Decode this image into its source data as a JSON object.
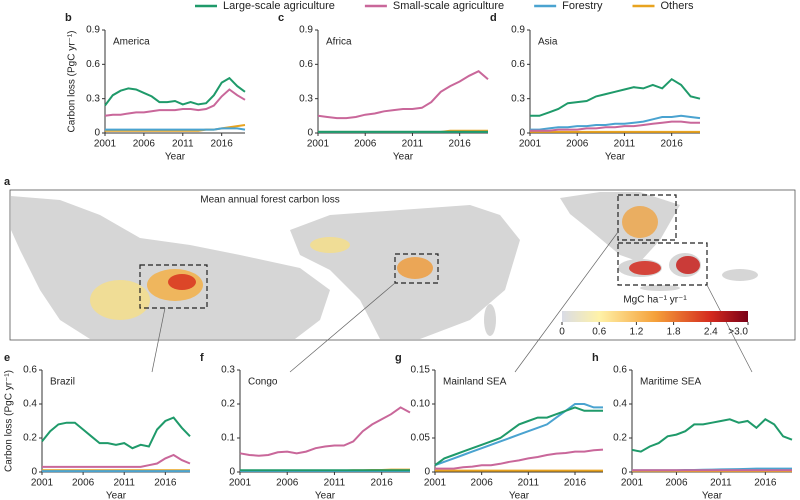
{
  "chart_data": [
    {
      "type": "line",
      "panel_label": "b",
      "title": "America",
      "ylabel": "Carbon loss (PgC yr⁻¹)",
      "xlabel": "Year",
      "x": [
        2001,
        2002,
        2003,
        2004,
        2005,
        2006,
        2007,
        2008,
        2009,
        2010,
        2011,
        2012,
        2013,
        2014,
        2015,
        2016,
        2017,
        2018,
        2019
      ],
      "xlim": [
        2001,
        2019
      ],
      "xticks": [
        2001,
        2006,
        2011,
        2016
      ],
      "ylim": [
        0,
        0.9
      ],
      "yticks": [
        0,
        0.3,
        0.6,
        0.9
      ],
      "series": [
        {
          "name": "Large-scale agriculture",
          "color": "#1f9a6a",
          "values": [
            0.24,
            0.33,
            0.37,
            0.39,
            0.38,
            0.35,
            0.32,
            0.27,
            0.27,
            0.28,
            0.25,
            0.27,
            0.25,
            0.26,
            0.33,
            0.44,
            0.48,
            0.41,
            0.36
          ]
        },
        {
          "name": "Small-scale agriculture",
          "color": "#c9679a",
          "values": [
            0.15,
            0.16,
            0.16,
            0.17,
            0.18,
            0.18,
            0.19,
            0.2,
            0.2,
            0.2,
            0.21,
            0.21,
            0.2,
            0.21,
            0.24,
            0.32,
            0.38,
            0.33,
            0.29
          ]
        },
        {
          "name": "Forestry",
          "color": "#4aa3d0",
          "values": [
            0.03,
            0.03,
            0.03,
            0.03,
            0.03,
            0.03,
            0.03,
            0.03,
            0.03,
            0.03,
            0.03,
            0.03,
            0.03,
            0.03,
            0.03,
            0.04,
            0.04,
            0.04,
            0.03
          ]
        },
        {
          "name": "Others",
          "color": "#e8a31f",
          "values": [
            0.02,
            0.02,
            0.02,
            0.02,
            0.02,
            0.02,
            0.02,
            0.02,
            0.02,
            0.02,
            0.02,
            0.02,
            0.02,
            0.03,
            0.03,
            0.04,
            0.05,
            0.06,
            0.07
          ]
        }
      ]
    },
    {
      "type": "line",
      "panel_label": "c",
      "title": "Africa",
      "xlabel": "Year",
      "x": [
        2001,
        2002,
        2003,
        2004,
        2005,
        2006,
        2007,
        2008,
        2009,
        2010,
        2011,
        2012,
        2013,
        2014,
        2015,
        2016,
        2017,
        2018,
        2019
      ],
      "xlim": [
        2001,
        2019
      ],
      "xticks": [
        2001,
        2006,
        2011,
        2016
      ],
      "ylim": [
        0,
        0.9
      ],
      "yticks": [
        0,
        0.3,
        0.6,
        0.9
      ],
      "series": [
        {
          "name": "Large-scale agriculture",
          "color": "#1f9a6a",
          "values": [
            0.01,
            0.01,
            0.01,
            0.01,
            0.01,
            0.01,
            0.01,
            0.01,
            0.01,
            0.01,
            0.01,
            0.01,
            0.01,
            0.01,
            0.01,
            0.01,
            0.01,
            0.01,
            0.01
          ]
        },
        {
          "name": "Small-scale agriculture",
          "color": "#c9679a",
          "values": [
            0.15,
            0.14,
            0.13,
            0.13,
            0.14,
            0.16,
            0.17,
            0.19,
            0.2,
            0.21,
            0.21,
            0.22,
            0.27,
            0.36,
            0.41,
            0.45,
            0.5,
            0.54,
            0.47
          ]
        },
        {
          "name": "Forestry",
          "color": "#4aa3d0",
          "values": [
            0.01,
            0.01,
            0.01,
            0.01,
            0.01,
            0.01,
            0.01,
            0.01,
            0.01,
            0.01,
            0.01,
            0.01,
            0.01,
            0.01,
            0.01,
            0.01,
            0.01,
            0.01,
            0.01
          ]
        },
        {
          "name": "Others",
          "color": "#e8a31f",
          "values": [
            0.01,
            0.01,
            0.01,
            0.01,
            0.01,
            0.01,
            0.01,
            0.01,
            0.01,
            0.01,
            0.01,
            0.01,
            0.01,
            0.01,
            0.02,
            0.02,
            0.02,
            0.02,
            0.02
          ]
        }
      ]
    },
    {
      "type": "line",
      "panel_label": "d",
      "title": "Asia",
      "xlabel": "Year",
      "x": [
        2001,
        2002,
        2003,
        2004,
        2005,
        2006,
        2007,
        2008,
        2009,
        2010,
        2011,
        2012,
        2013,
        2014,
        2015,
        2016,
        2017,
        2018,
        2019
      ],
      "xlim": [
        2001,
        2019
      ],
      "xticks": [
        2001,
        2006,
        2011,
        2016
      ],
      "ylim": [
        0,
        0.9
      ],
      "yticks": [
        0,
        0.3,
        0.6,
        0.9
      ],
      "series": [
        {
          "name": "Large-scale agriculture",
          "color": "#1f9a6a",
          "values": [
            0.15,
            0.15,
            0.18,
            0.21,
            0.26,
            0.27,
            0.28,
            0.32,
            0.34,
            0.36,
            0.38,
            0.4,
            0.39,
            0.42,
            0.39,
            0.47,
            0.42,
            0.32,
            0.3
          ]
        },
        {
          "name": "Small-scale agriculture",
          "color": "#c9679a",
          "values": [
            0.02,
            0.02,
            0.02,
            0.03,
            0.03,
            0.03,
            0.04,
            0.04,
            0.05,
            0.05,
            0.06,
            0.06,
            0.07,
            0.08,
            0.09,
            0.1,
            0.1,
            0.09,
            0.09
          ]
        },
        {
          "name": "Forestry",
          "color": "#4aa3d0",
          "values": [
            0.03,
            0.03,
            0.04,
            0.05,
            0.05,
            0.06,
            0.06,
            0.07,
            0.07,
            0.08,
            0.08,
            0.09,
            0.1,
            0.12,
            0.14,
            0.14,
            0.15,
            0.14,
            0.13
          ]
        },
        {
          "name": "Others",
          "color": "#e8a31f",
          "values": [
            0.01,
            0.01,
            0.01,
            0.01,
            0.01,
            0.01,
            0.01,
            0.01,
            0.01,
            0.01,
            0.01,
            0.01,
            0.01,
            0.01,
            0.01,
            0.01,
            0.01,
            0.01,
            0.01
          ]
        }
      ]
    },
    {
      "type": "map",
      "panel_label": "a",
      "title": "Mean annual forest carbon loss",
      "colorbar": {
        "label": "MgC ha⁻¹ yr⁻¹",
        "lim": [
          0,
          3
        ],
        "ticks": [
          0,
          0.6,
          1.2,
          1.8,
          2.4,
          {
            "value": 3,
            "label": ">3.0"
          }
        ]
      }
    },
    {
      "type": "line",
      "panel_label": "e",
      "title": "Brazil",
      "ylabel": "Carbon loss (PgC yr⁻¹)",
      "xlabel": "Year",
      "x": [
        2001,
        2002,
        2003,
        2004,
        2005,
        2006,
        2007,
        2008,
        2009,
        2010,
        2011,
        2012,
        2013,
        2014,
        2015,
        2016,
        2017,
        2018,
        2019
      ],
      "xlim": [
        2001,
        2019
      ],
      "xticks": [
        2001,
        2006,
        2011,
        2016
      ],
      "ylim": [
        0,
        0.6
      ],
      "yticks": [
        0,
        0.2,
        0.4,
        0.6
      ],
      "series": [
        {
          "name": "Large-scale agriculture",
          "color": "#1f9a6a",
          "values": [
            0.18,
            0.24,
            0.28,
            0.29,
            0.29,
            0.25,
            0.21,
            0.17,
            0.17,
            0.16,
            0.17,
            0.14,
            0.16,
            0.15,
            0.25,
            0.3,
            0.32,
            0.26,
            0.21
          ]
        },
        {
          "name": "Small-scale agriculture",
          "color": "#c9679a",
          "values": [
            0.03,
            0.03,
            0.03,
            0.03,
            0.03,
            0.03,
            0.03,
            0.03,
            0.03,
            0.03,
            0.03,
            0.03,
            0.03,
            0.04,
            0.05,
            0.08,
            0.1,
            0.07,
            0.05
          ]
        },
        {
          "name": "Forestry",
          "color": "#4aa3d0",
          "values": [
            0.005,
            0.005,
            0.005,
            0.005,
            0.005,
            0.005,
            0.005,
            0.005,
            0.005,
            0.005,
            0.005,
            0.005,
            0.005,
            0.005,
            0.005,
            0.005,
            0.005,
            0.005,
            0.005
          ]
        },
        {
          "name": "Others",
          "color": "#e8a31f",
          "values": [
            0.01,
            0.01,
            0.01,
            0.01,
            0.01,
            0.01,
            0.01,
            0.01,
            0.01,
            0.01,
            0.01,
            0.01,
            0.01,
            0.01,
            0.01,
            0.01,
            0.01,
            0.01,
            0.01
          ]
        }
      ]
    },
    {
      "type": "line",
      "panel_label": "f",
      "title": "Congo",
      "xlabel": "Year",
      "x": [
        2001,
        2002,
        2003,
        2004,
        2005,
        2006,
        2007,
        2008,
        2009,
        2010,
        2011,
        2012,
        2013,
        2014,
        2015,
        2016,
        2017,
        2018,
        2019
      ],
      "xlim": [
        2001,
        2019
      ],
      "xticks": [
        2001,
        2006,
        2011,
        2016
      ],
      "ylim": [
        0,
        0.3
      ],
      "yticks": [
        0,
        0.1,
        0.2,
        0.3
      ],
      "series": [
        {
          "name": "Large-scale agriculture",
          "color": "#1f9a6a",
          "values": [
            0.005,
            0.005,
            0.005,
            0.005,
            0.005,
            0.005,
            0.005,
            0.005,
            0.005,
            0.005,
            0.005,
            0.005,
            0.005,
            0.005,
            0.005,
            0.005,
            0.005,
            0.005,
            0.005
          ]
        },
        {
          "name": "Small-scale agriculture",
          "color": "#c9679a",
          "values": [
            0.055,
            0.05,
            0.048,
            0.05,
            0.058,
            0.06,
            0.055,
            0.06,
            0.07,
            0.075,
            0.078,
            0.078,
            0.09,
            0.12,
            0.14,
            0.155,
            0.17,
            0.19,
            0.175
          ]
        },
        {
          "name": "Forestry",
          "color": "#4aa3d0",
          "values": [
            0.003,
            0.003,
            0.003,
            0.003,
            0.003,
            0.003,
            0.003,
            0.003,
            0.003,
            0.003,
            0.003,
            0.003,
            0.003,
            0.003,
            0.003,
            0.003,
            0.003,
            0.003,
            0.003
          ]
        },
        {
          "name": "Others",
          "color": "#e8a31f",
          "values": [
            0.003,
            0.003,
            0.003,
            0.003,
            0.003,
            0.003,
            0.003,
            0.003,
            0.003,
            0.004,
            0.004,
            0.004,
            0.005,
            0.005,
            0.006,
            0.006,
            0.007,
            0.007,
            0.007
          ]
        }
      ]
    },
    {
      "type": "line",
      "panel_label": "g",
      "title": "Mainland SEA",
      "xlabel": "Year",
      "x": [
        2001,
        2002,
        2003,
        2004,
        2005,
        2006,
        2007,
        2008,
        2009,
        2010,
        2011,
        2012,
        2013,
        2014,
        2015,
        2016,
        2017,
        2018,
        2019
      ],
      "xlim": [
        2001,
        2019
      ],
      "xticks": [
        2001,
        2006,
        2011,
        2016
      ],
      "ylim": [
        0,
        0.15
      ],
      "yticks": [
        0,
        0.05,
        {
          "value": 0.1,
          "label": "0.10"
        },
        0.15
      ],
      "series": [
        {
          "name": "Large-scale agriculture",
          "color": "#1f9a6a",
          "values": [
            0.01,
            0.02,
            0.025,
            0.03,
            0.035,
            0.04,
            0.045,
            0.05,
            0.06,
            0.07,
            0.075,
            0.08,
            0.08,
            0.085,
            0.09,
            0.095,
            0.09,
            0.09,
            0.09
          ]
        },
        {
          "name": "Small-scale agriculture",
          "color": "#c9679a",
          "values": [
            0.005,
            0.005,
            0.005,
            0.007,
            0.008,
            0.01,
            0.01,
            0.012,
            0.015,
            0.017,
            0.02,
            0.022,
            0.025,
            0.027,
            0.028,
            0.03,
            0.03,
            0.032,
            0.033
          ]
        },
        {
          "name": "Forestry",
          "color": "#4aa3d0",
          "values": [
            0.01,
            0.015,
            0.02,
            0.025,
            0.03,
            0.035,
            0.04,
            0.045,
            0.05,
            0.055,
            0.06,
            0.065,
            0.07,
            0.08,
            0.09,
            0.1,
            0.1,
            0.095,
            0.095
          ]
        },
        {
          "name": "Others",
          "color": "#e8a31f",
          "values": [
            0.002,
            0.002,
            0.002,
            0.002,
            0.002,
            0.002,
            0.002,
            0.002,
            0.002,
            0.002,
            0.002,
            0.002,
            0.002,
            0.002,
            0.002,
            0.002,
            0.002,
            0.002,
            0.002
          ]
        }
      ]
    },
    {
      "type": "line",
      "panel_label": "h",
      "title": "Maritime SEA",
      "xlabel": "Year",
      "x": [
        2001,
        2002,
        2003,
        2004,
        2005,
        2006,
        2007,
        2008,
        2009,
        2010,
        2011,
        2012,
        2013,
        2014,
        2015,
        2016,
        2017,
        2018,
        2019
      ],
      "xlim": [
        2001,
        2019
      ],
      "xticks": [
        2001,
        2006,
        2011,
        2016
      ],
      "ylim": [
        0,
        0.6
      ],
      "yticks": [
        0,
        0.2,
        0.4,
        0.6
      ],
      "series": [
        {
          "name": "Large-scale agriculture",
          "color": "#1f9a6a",
          "values": [
            0.13,
            0.12,
            0.15,
            0.17,
            0.21,
            0.22,
            0.24,
            0.28,
            0.28,
            0.29,
            0.3,
            0.31,
            0.29,
            0.3,
            0.26,
            0.31,
            0.28,
            0.21,
            0.19
          ]
        },
        {
          "name": "Small-scale agriculture",
          "color": "#c9679a",
          "values": [
            0.01,
            0.01,
            0.01,
            0.01,
            0.01,
            0.01,
            0.01,
            0.01,
            0.01,
            0.01,
            0.01,
            0.01,
            0.01,
            0.01,
            0.01,
            0.01,
            0.01,
            0.01,
            0.01
          ]
        },
        {
          "name": "Forestry",
          "color": "#4aa3d0",
          "values": [
            0.01,
            0.01,
            0.01,
            0.01,
            0.01,
            0.01,
            0.012,
            0.012,
            0.013,
            0.014,
            0.015,
            0.016,
            0.017,
            0.018,
            0.02,
            0.02,
            0.02,
            0.02,
            0.02
          ]
        },
        {
          "name": "Others",
          "color": "#e8a31f",
          "values": [
            0.005,
            0.005,
            0.005,
            0.005,
            0.005,
            0.005,
            0.005,
            0.005,
            0.005,
            0.005,
            0.005,
            0.005,
            0.005,
            0.005,
            0.005,
            0.005,
            0.005,
            0.005,
            0.005
          ]
        }
      ]
    }
  ]
}
